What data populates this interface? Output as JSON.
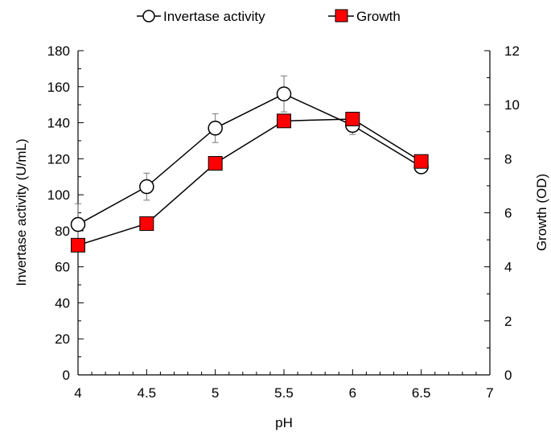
{
  "chart_data": {
    "type": "line",
    "xlabel": "pH",
    "ylabel_left": "Invertase activity (U/mL)",
    "ylabel_right": "Growth (OD)",
    "xlim": [
      4,
      7
    ],
    "ylim_left": [
      0,
      180
    ],
    "ylim_right": [
      0,
      12
    ],
    "x_ticks": [
      4,
      4.5,
      5,
      5.5,
      6,
      6.5,
      7
    ],
    "y_ticks_left": [
      0,
      20,
      40,
      60,
      80,
      100,
      120,
      140,
      160,
      180
    ],
    "y_ticks_right": [
      0,
      2,
      4,
      6,
      8,
      10,
      12
    ],
    "grid": false,
    "legend_position": "top",
    "x": [
      4,
      4.5,
      5,
      5.5,
      6,
      6.5
    ],
    "series": [
      {
        "name": "Invertase activity",
        "axis": "left",
        "marker": "open-circle",
        "color": "#000000",
        "values": [
          83.5,
          104.5,
          137,
          156,
          138.5,
          115.5
        ],
        "error": [
          11.5,
          7.5,
          8,
          10,
          5,
          0
        ]
      },
      {
        "name": "Growth",
        "axis": "right",
        "marker": "filled-square",
        "color": "#ff0000",
        "values": [
          4.8,
          5.6,
          7.83,
          9.4,
          9.47,
          7.9
        ]
      }
    ]
  }
}
